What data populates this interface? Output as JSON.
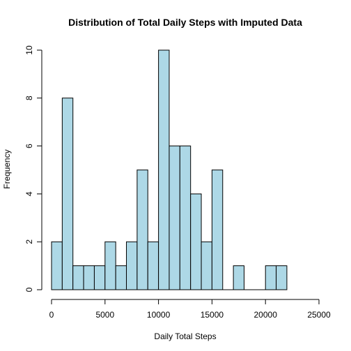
{
  "chart_data": {
    "type": "bar",
    "title": "Distribution of Total Daily Steps with Imputed Data",
    "xlabel": "Daily Total Steps",
    "ylabel": "Frequency",
    "bar_color": "#add8e6",
    "bin_width": 1000,
    "bin_starts": [
      0,
      1000,
      2000,
      3000,
      4000,
      5000,
      6000,
      7000,
      8000,
      9000,
      10000,
      11000,
      12000,
      13000,
      14000,
      15000,
      16000,
      17000,
      18000,
      19000,
      20000,
      21000
    ],
    "values": [
      2,
      8,
      1,
      1,
      1,
      2,
      1,
      2,
      5,
      2,
      10,
      6,
      6,
      4,
      2,
      5,
      0,
      1,
      0,
      0,
      1,
      1
    ],
    "xlim": [
      0,
      25000
    ],
    "ylim": [
      0,
      10
    ],
    "x_ticks": [
      0,
      5000,
      10000,
      15000,
      20000,
      25000
    ],
    "y_ticks": [
      0,
      2,
      4,
      6,
      8,
      10
    ],
    "grid": false,
    "legend": "none"
  }
}
